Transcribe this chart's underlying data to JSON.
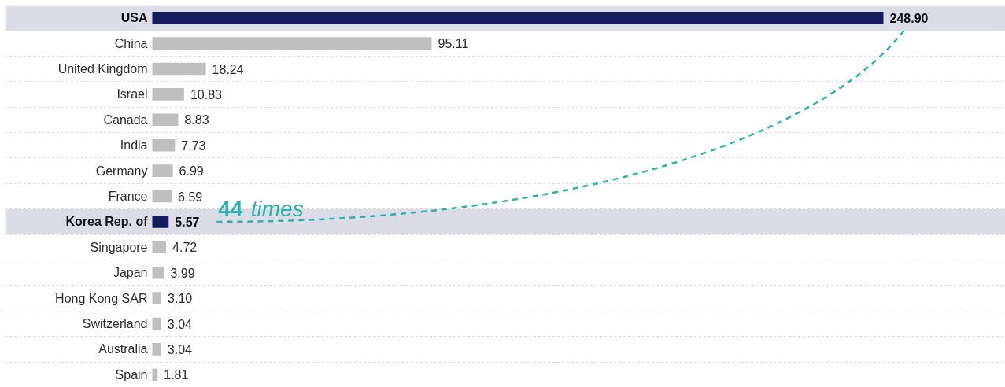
{
  "chart_data": {
    "type": "bar",
    "orientation": "horizontal",
    "categories": [
      "USA",
      "China",
      "United Kingdom",
      "Israel",
      "Canada",
      "India",
      "Germany",
      "France",
      "Korea Rep. of",
      "Singapore",
      "Japan",
      "Hong Kong SAR",
      "Switzerland",
      "Australia",
      "Spain"
    ],
    "values": [
      248.9,
      95.11,
      18.24,
      10.83,
      8.83,
      7.73,
      6.99,
      6.59,
      5.57,
      4.72,
      3.99,
      3.1,
      3.04,
      3.04,
      1.81
    ],
    "value_labels": [
      "248.90",
      "95.11",
      "18.24",
      "10.83",
      "8.83",
      "7.73",
      "6.99",
      "6.59",
      "5.57",
      "4.72",
      "3.99",
      "3.10",
      "3.04",
      "3.04",
      "1.81"
    ],
    "colors": [
      "#151b5c",
      "#bfbfbf",
      "#bfbfbf",
      "#bfbfbf",
      "#bfbfbf",
      "#bfbfbf",
      "#bfbfbf",
      "#bfbfbf",
      "#151b5c",
      "#bfbfbf",
      "#bfbfbf",
      "#bfbfbf",
      "#bfbfbf",
      "#bfbfbf",
      "#bfbfbf"
    ],
    "bands": [
      {
        "axis": "y",
        "from": "USA",
        "to": "USA",
        "color": "#dcdce6"
      },
      {
        "axis": "y",
        "from": "Korea Rep. of",
        "to": "Korea Rep. of",
        "color": "#dcdce6"
      }
    ],
    "annotations": [
      {
        "text": "44 times",
        "x": 5.57,
        "y": "Korea Rep. of"
      }
    ],
    "grid": "y"
  }
}
